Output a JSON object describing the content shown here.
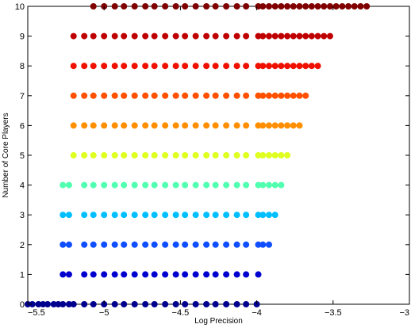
{
  "chart_data": {
    "type": "scatter",
    "title": "",
    "xlabel": "Log Precision",
    "ylabel": "Number of Core Players",
    "xlim": [
      -5.5,
      -3
    ],
    "ylim": [
      0,
      10
    ],
    "xticks": [
      -5.5,
      -5,
      -4.5,
      -4,
      -3.5,
      -3
    ],
    "xtick_labels": [
      "−5.5",
      "−5",
      "−4.5",
      "−4",
      "−3.5",
      "−3"
    ],
    "yticks": [
      0,
      1,
      2,
      3,
      4,
      5,
      6,
      7,
      8,
      9,
      10
    ],
    "ytick_labels": [
      "0",
      "1",
      "2",
      "3",
      "4",
      "5",
      "6",
      "7",
      "8",
      "9",
      "10"
    ],
    "grid": false,
    "legend": "none",
    "series": [
      {
        "y": 0,
        "color": "#00008f",
        "x": [
          -5.5,
          -5.47,
          -5.43,
          -5.4,
          -5.37,
          -5.33,
          -5.3,
          -5.27,
          -5.23,
          -5.2,
          -5.13,
          -5.07,
          -5.0,
          -4.93,
          -4.87,
          -4.8,
          -4.73,
          -4.67,
          -4.6,
          -4.53,
          -4.47,
          -4.4,
          -4.33,
          -4.27,
          -4.2,
          -4.13,
          -4.07,
          -4.0
        ]
      },
      {
        "y": 1,
        "color": "#0000cf",
        "x": [
          -5.27,
          -5.23,
          -5.13,
          -5.07,
          -5.0,
          -4.93,
          -4.87,
          -4.8,
          -4.73,
          -4.67,
          -4.6,
          -4.53,
          -4.47,
          -4.4,
          -4.33,
          -4.27,
          -4.2,
          -4.13,
          -4.07,
          -3.99
        ]
      },
      {
        "y": 2,
        "color": "#0f4fff",
        "x": [
          -5.27,
          -5.23,
          -5.13,
          -5.07,
          -5.0,
          -4.93,
          -4.87,
          -4.8,
          -4.73,
          -4.67,
          -4.6,
          -4.53,
          -4.47,
          -4.4,
          -4.33,
          -4.27,
          -4.2,
          -4.13,
          -4.07,
          -3.99,
          -3.96,
          -3.92
        ]
      },
      {
        "y": 3,
        "color": "#00bfff",
        "x": [
          -5.27,
          -5.23,
          -5.13,
          -5.07,
          -5.0,
          -4.93,
          -4.87,
          -4.8,
          -4.73,
          -4.67,
          -4.6,
          -4.53,
          -4.47,
          -4.4,
          -4.33,
          -4.27,
          -4.2,
          -4.13,
          -4.07,
          -3.99,
          -3.96,
          -3.92,
          -3.88
        ]
      },
      {
        "y": 4,
        "color": "#50ffaf",
        "x": [
          -5.27,
          -5.23,
          -5.13,
          -5.07,
          -5.0,
          -4.93,
          -4.87,
          -4.8,
          -4.73,
          -4.67,
          -4.6,
          -4.53,
          -4.47,
          -4.4,
          -4.33,
          -4.27,
          -4.2,
          -4.13,
          -4.07,
          -3.99,
          -3.96,
          -3.92,
          -3.88,
          -3.84
        ]
      },
      {
        "y": 5,
        "color": "#dfff20",
        "x": [
          -5.2,
          -5.13,
          -5.07,
          -5.0,
          -4.93,
          -4.87,
          -4.8,
          -4.73,
          -4.67,
          -4.6,
          -4.53,
          -4.47,
          -4.4,
          -4.33,
          -4.27,
          -4.2,
          -4.13,
          -4.07,
          -3.99,
          -3.96,
          -3.92,
          -3.88,
          -3.84,
          -3.8
        ]
      },
      {
        "y": 6,
        "color": "#ff8f00",
        "x": [
          -5.2,
          -5.13,
          -5.07,
          -5.0,
          -4.93,
          -4.87,
          -4.8,
          -4.73,
          -4.67,
          -4.6,
          -4.53,
          -4.47,
          -4.4,
          -4.33,
          -4.27,
          -4.2,
          -4.13,
          -4.07,
          -3.99,
          -3.96,
          -3.92,
          -3.88,
          -3.84,
          -3.8,
          -3.76,
          -3.72
        ]
      },
      {
        "y": 7,
        "color": "#ff5000",
        "x": [
          -5.2,
          -5.13,
          -5.07,
          -5.0,
          -4.93,
          -4.87,
          -4.8,
          -4.73,
          -4.67,
          -4.6,
          -4.53,
          -4.47,
          -4.4,
          -4.33,
          -4.27,
          -4.2,
          -4.13,
          -4.07,
          -3.99,
          -3.96,
          -3.92,
          -3.88,
          -3.84,
          -3.8,
          -3.76,
          -3.72,
          -3.68
        ]
      },
      {
        "y": 8,
        "color": "#ef1000",
        "x": [
          -5.2,
          -5.13,
          -5.07,
          -5.0,
          -4.93,
          -4.87,
          -4.8,
          -4.73,
          -4.67,
          -4.6,
          -4.53,
          -4.47,
          -4.4,
          -4.33,
          -4.27,
          -4.2,
          -4.13,
          -4.07,
          -3.99,
          -3.96,
          -3.92,
          -3.88,
          -3.84,
          -3.8,
          -3.76,
          -3.72,
          -3.68,
          -3.64,
          -3.6
        ]
      },
      {
        "y": 9,
        "color": "#bf0000",
        "x": [
          -5.2,
          -5.13,
          -5.07,
          -5.0,
          -4.93,
          -4.87,
          -4.8,
          -4.73,
          -4.67,
          -4.6,
          -4.53,
          -4.47,
          -4.4,
          -4.33,
          -4.27,
          -4.2,
          -4.13,
          -4.07,
          -3.99,
          -3.96,
          -3.92,
          -3.88,
          -3.84,
          -3.8,
          -3.76,
          -3.72,
          -3.68,
          -3.64,
          -3.6,
          -3.56,
          -3.52
        ]
      },
      {
        "y": 10,
        "color": "#800000",
        "x": [
          -5.07,
          -5.0,
          -4.93,
          -4.87,
          -4.8,
          -4.73,
          -4.67,
          -4.6,
          -4.53,
          -4.47,
          -4.4,
          -4.33,
          -4.27,
          -4.2,
          -4.13,
          -4.07,
          -3.99,
          -3.96,
          -3.92,
          -3.88,
          -3.84,
          -3.8,
          -3.76,
          -3.72,
          -3.68,
          -3.64,
          -3.6,
          -3.56,
          -3.52,
          -3.48,
          -3.44,
          -3.4,
          -3.36,
          -3.32,
          -3.28
        ]
      }
    ]
  }
}
